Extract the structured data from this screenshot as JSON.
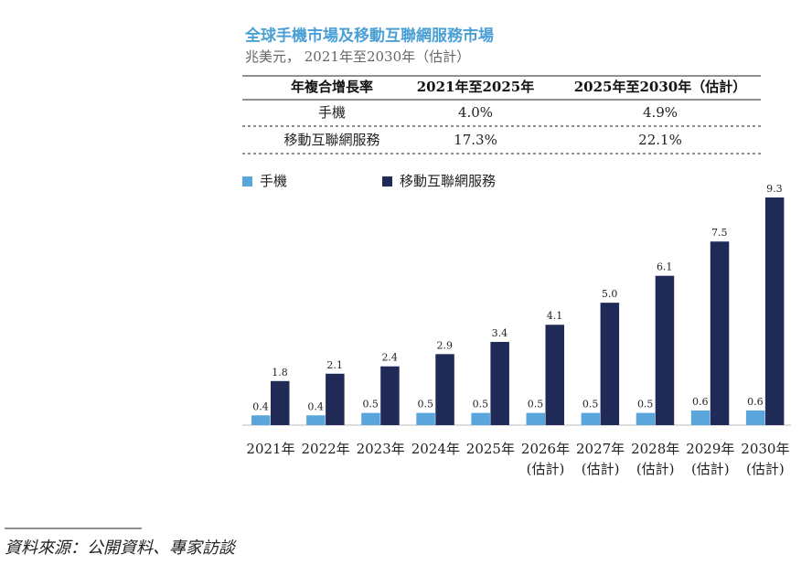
{
  "chart_data": {
    "type": "bar",
    "title": "全球手機市場及移動互聯網服務市場",
    "subtitle": "兆美元， 2021年至2030年（估計）",
    "categories": [
      "2021年",
      "2022年",
      "2023年",
      "2024年",
      "2025年",
      "2026年\n(估計)",
      "2027年\n(估計)",
      "2028年\n(估計)",
      "2029年\n(估計)",
      "2030年\n(估計)"
    ],
    "series": [
      {
        "name": "手機",
        "color": "#5aa6dc",
        "values": [
          0.4,
          0.4,
          0.5,
          0.5,
          0.5,
          0.5,
          0.5,
          0.5,
          0.6,
          0.6
        ]
      },
      {
        "name": "移動互聯網服務",
        "color": "#1f2a56",
        "values": [
          1.8,
          2.1,
          2.4,
          2.9,
          3.4,
          4.1,
          5.0,
          6.1,
          7.5,
          9.3
        ],
        "value_labels": [
          "1.8",
          "2.1",
          "2.4",
          "2.9",
          "3.4",
          "4.1",
          "5.0",
          "6.1",
          "7.5",
          "9.3"
        ]
      }
    ]
  },
  "table": {
    "header": [
      "年複合增長率",
      "2021年至2025年",
      "2025年至2030年（估計）"
    ],
    "rows": [
      [
        "手機",
        "4.0%",
        "4.9%"
      ],
      [
        "移動互聯網服務",
        "17.3%",
        "22.1%"
      ]
    ]
  },
  "source": "資料來源：公開資料、專家訪談"
}
